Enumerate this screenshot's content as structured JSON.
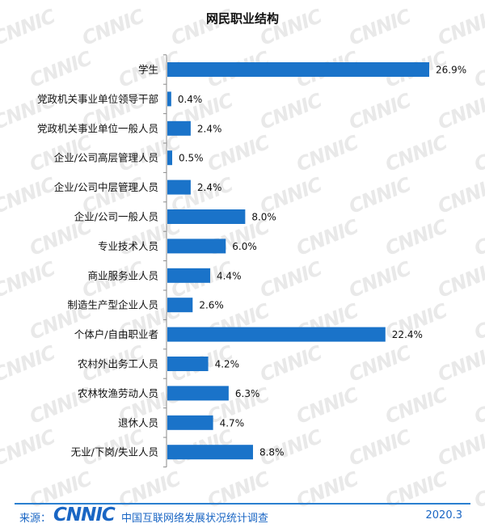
{
  "chart_data": {
    "type": "bar",
    "orientation": "horizontal",
    "title": "网民职业结构",
    "categories": [
      "学生",
      "党政机关事业单位领导干部",
      "党政机关事业单位一般人员",
      "企业/公司高层管理人员",
      "企业/公司中层管理人员",
      "企业/公司一般人员",
      "专业技术人员",
      "商业服务业人员",
      "制造生产型企业人员",
      "个体户/自由职业者",
      "农村外出务工人员",
      "农林牧渔劳动人员",
      "退休人员",
      "无业/下岗/失业人员"
    ],
    "values": [
      26.9,
      0.4,
      2.4,
      0.5,
      2.4,
      8.0,
      6.0,
      4.4,
      2.6,
      22.4,
      4.2,
      6.3,
      4.7,
      8.8
    ],
    "value_labels": [
      "26.9%",
      "0.4%",
      "2.4%",
      "0.5%",
      "2.4%",
      "8.0%",
      "6.0%",
      "4.4%",
      "2.6%",
      "22.4%",
      "4.2%",
      "6.3%",
      "4.7%",
      "8.8%"
    ],
    "unit": "%",
    "xlim": [
      0,
      30
    ],
    "bar_color": "#1a73c9",
    "grid": false,
    "legend": "none"
  },
  "watermark": "CNNIC",
  "footer": {
    "source_label": "来源：",
    "logo": "CNNIC",
    "source": "中国互联网络发展状况统计调查",
    "date": "2020.3",
    "accent_color": "#1a66c4"
  }
}
